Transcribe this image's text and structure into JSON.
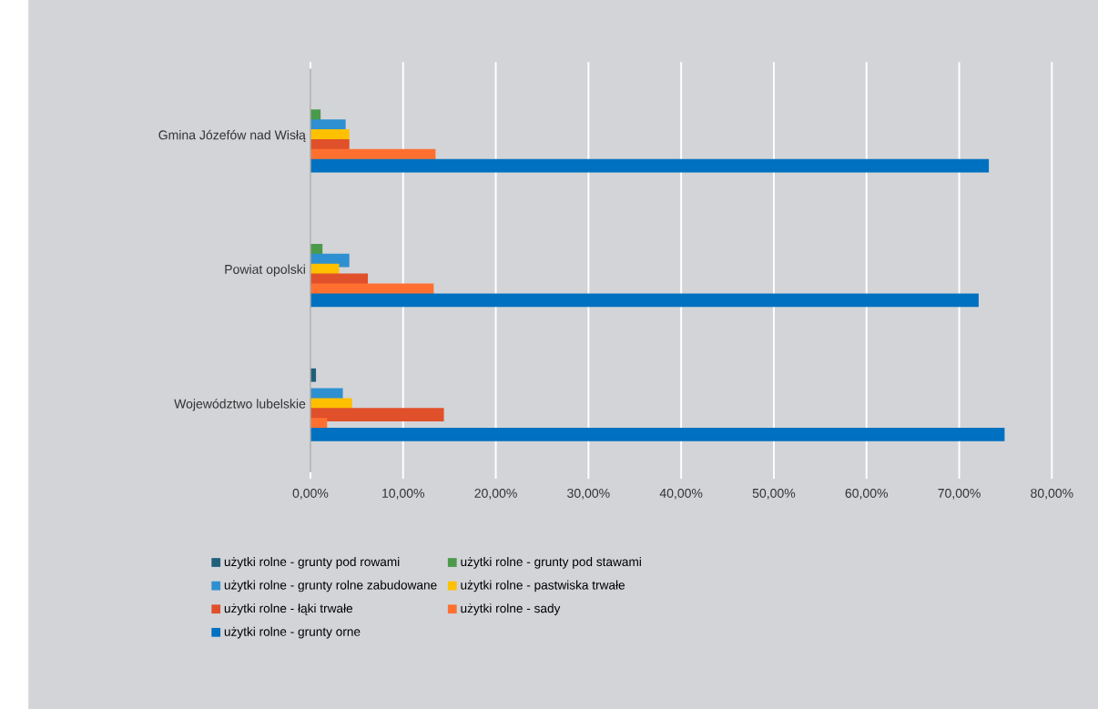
{
  "chart_data": {
    "type": "bar",
    "orientation": "horizontal",
    "categories": [
      "Gmina Józefów nad Wisłą",
      "Powiat opolski",
      "Województwo lubelskie"
    ],
    "series": [
      {
        "name": "użytki rolne - grunty pod rowami",
        "color": "#1f5f7a",
        "values": [
          null,
          null,
          0.6
        ]
      },
      {
        "name": "użytki rolne - grunty pod stawami",
        "color": "#4a9a4a",
        "values": [
          1.1,
          1.3,
          null
        ]
      },
      {
        "name": "użytki rolne - grunty rolne zabudowane",
        "color": "#2e90d0",
        "values": [
          3.8,
          4.2,
          3.5
        ]
      },
      {
        "name": "użytki rolne - pastwiska trwałe",
        "color": "#ffc000",
        "values": [
          4.2,
          3.1,
          4.5
        ]
      },
      {
        "name": "użytki rolne - łąki trwałe",
        "color": "#e0502a",
        "values": [
          4.2,
          6.2,
          14.4
        ]
      },
      {
        "name": "użytki rolne - sady",
        "color": "#ff7030",
        "values": [
          13.5,
          13.3,
          1.8
        ]
      },
      {
        "name": "użytki rolne - grunty orne",
        "color": "#0070c0",
        "values": [
          73.2,
          72.1,
          74.9
        ]
      }
    ],
    "xlim": [
      0,
      80
    ],
    "xticks": [
      {
        "value": 0,
        "label": "0,00%"
      },
      {
        "value": 10,
        "label": "10,00%"
      },
      {
        "value": 20,
        "label": "20,00%"
      },
      {
        "value": 30,
        "label": "30,00%"
      },
      {
        "value": 40,
        "label": "40,00%"
      },
      {
        "value": 50,
        "label": "50,00%"
      },
      {
        "value": 60,
        "label": "60,00%"
      },
      {
        "value": 70,
        "label": "70,00%"
      },
      {
        "value": 80,
        "label": "80,00%"
      }
    ],
    "grid": "x",
    "legend": "bottom"
  }
}
